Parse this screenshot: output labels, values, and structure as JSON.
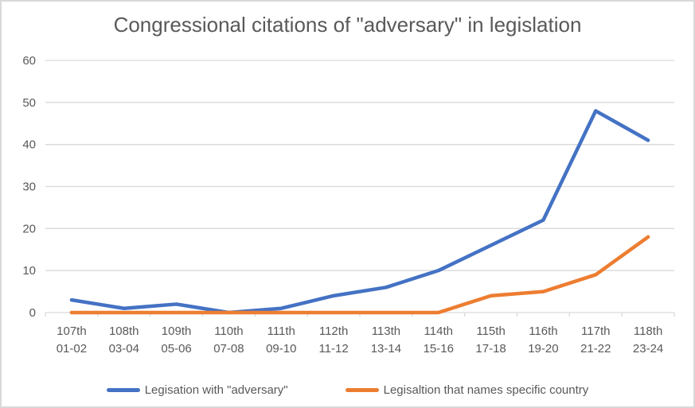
{
  "chart_data": {
    "type": "line",
    "title": "Congressional citations of \"adversary\" in legislation",
    "categories": [
      {
        "congress": "107th",
        "years": "01-02"
      },
      {
        "congress": "108th",
        "years": "03-04"
      },
      {
        "congress": "109th",
        "years": "05-06"
      },
      {
        "congress": "110th",
        "years": "07-08"
      },
      {
        "congress": "111th",
        "years": "09-10"
      },
      {
        "congress": "112th",
        "years": "11-12"
      },
      {
        "congress": "113th",
        "years": "13-14"
      },
      {
        "congress": "114th",
        "years": "15-16"
      },
      {
        "congress": "115th",
        "years": "17-18"
      },
      {
        "congress": "116th",
        "years": "19-20"
      },
      {
        "congress": "117th",
        "years": "21-22"
      },
      {
        "congress": "118th",
        "years": "23-24"
      }
    ],
    "series": [
      {
        "id": "legislation-with-adversary",
        "name": "Legisation with \"adversary\"",
        "color": "#4472C4",
        "values": [
          3,
          1,
          2,
          0,
          1,
          4,
          6,
          10,
          16,
          22,
          48,
          41
        ]
      },
      {
        "id": "legislation-names-specific-country",
        "name": "Legisaltion that names specific country",
        "color": "#ED7D31",
        "values": [
          0,
          0,
          0,
          0,
          0,
          0,
          0,
          0,
          4,
          5,
          9,
          18
        ]
      }
    ],
    "y_axis": {
      "min": 0,
      "max": 60,
      "tick_step": 10,
      "ticks": [
        0,
        10,
        20,
        30,
        40,
        50,
        60
      ]
    },
    "xlabel": "",
    "ylabel": "",
    "grid": true,
    "legend_position": "bottom",
    "colors": {
      "text": "#595959",
      "gridline": "#D9D9D9",
      "axis": "#D9D9D9",
      "border": "#D9D9D9",
      "background": "#FFFFFF"
    }
  }
}
